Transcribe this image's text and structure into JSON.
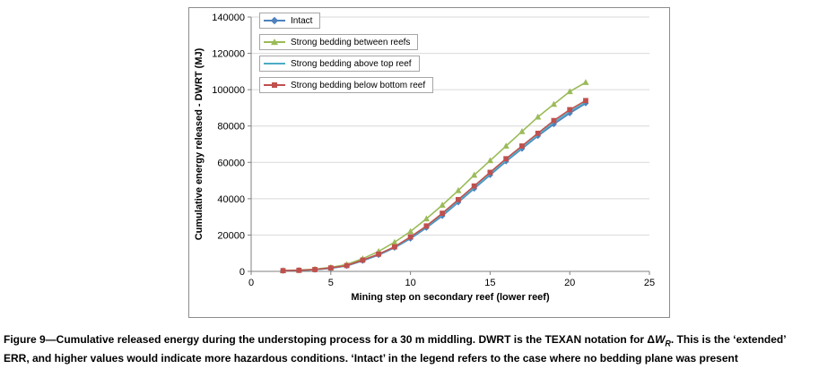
{
  "chart_data": {
    "type": "line",
    "title": "",
    "xlabel": "Mining step on secondary reef (lower reef)",
    "ylabel": "Cumulative energy released - DWRT (MJ)",
    "xlim": [
      0,
      25
    ],
    "ylim": [
      0,
      140000
    ],
    "x_ticks": [
      0,
      5,
      10,
      15,
      20,
      25
    ],
    "y_ticks": [
      0,
      20000,
      40000,
      60000,
      80000,
      100000,
      120000,
      140000
    ],
    "grid": "horizontal",
    "legend_position": "top-left-inside",
    "x_values": [
      2,
      3,
      4,
      5,
      6,
      7,
      8,
      9,
      10,
      11,
      12,
      13,
      14,
      15,
      16,
      17,
      18,
      19,
      20,
      21
    ],
    "series": [
      {
        "name": "Intact",
        "color": "#4F81BD",
        "marker": "diamond",
        "values": [
          350,
          550,
          900,
          1700,
          3000,
          5800,
          9000,
          13000,
          18000,
          24000,
          30500,
          38000,
          45500,
          53000,
          60500,
          67500,
          74500,
          81000,
          87000,
          92500
        ]
      },
      {
        "name": "Strong bedding between reefs",
        "color": "#9BBB59",
        "marker": "triangle",
        "values": [
          500,
          700,
          1200,
          2200,
          3800,
          7000,
          11000,
          16000,
          22000,
          29000,
          36500,
          44500,
          53000,
          61000,
          69000,
          77000,
          85000,
          92000,
          99000,
          104000
        ]
      },
      {
        "name": "Strong bedding above top reef",
        "color": "#4BACC6",
        "marker": "none",
        "values": [
          380,
          580,
          950,
          1800,
          3100,
          6000,
          9200,
          13200,
          18500,
          24500,
          31000,
          38500,
          46000,
          53500,
          61000,
          68000,
          75000,
          82000,
          88000,
          93000
        ]
      },
      {
        "name": "Strong bedding below bottom reef",
        "color": "#C0504D",
        "marker": "square",
        "values": [
          400,
          600,
          1000,
          1900,
          3200,
          6200,
          9500,
          13500,
          19000,
          25000,
          32000,
          39500,
          47000,
          54500,
          62000,
          69000,
          76000,
          83000,
          89000,
          94000
        ]
      }
    ]
  },
  "caption": {
    "line1_pre": "Figure 9—Cumulative released energy during the understoping process for a 30 m middling. DWRT is the TEXAN notation for Δ",
    "line1_var": "W",
    "line1_sub": "R",
    "line1_post": ". This is the ‘extended’",
    "line2": "ERR, and higher values would indicate more hazardous conditions. ‘Intact’ in the legend refers to the case where no bedding plane was present"
  }
}
